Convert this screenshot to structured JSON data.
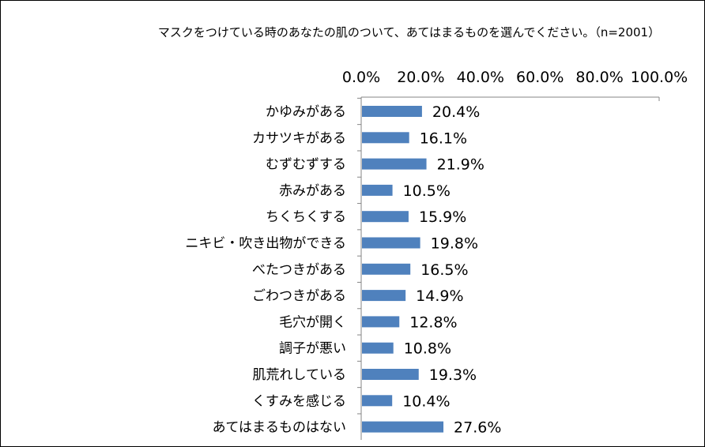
{
  "chart_data": {
    "type": "bar",
    "orientation": "horizontal",
    "title": "マスクをつけている時のあなたの肌のついて、あてはまるものを選んでください。（n=2001）",
    "x_axis_position": "top",
    "xlim": [
      0,
      100
    ],
    "xticks": [
      "0.0%",
      "20.0%",
      "40.0%",
      "60.0%",
      "80.0%",
      "100.0%"
    ],
    "categories": [
      "かゆみがある",
      "カサツキがある",
      "むずむずする",
      "赤みがある",
      "ちくちくする",
      "ニキビ・吹き出物ができる",
      "べたつきがある",
      "ごわつきがある",
      "毛穴が開く",
      "調子が悪い",
      "肌荒れしている",
      "くすみを感じる",
      "あてはまるものはない"
    ],
    "values": [
      20.4,
      16.1,
      21.9,
      10.5,
      15.9,
      19.8,
      16.5,
      14.9,
      12.8,
      10.8,
      19.3,
      10.4,
      27.6
    ],
    "data_labels": [
      "20.4%",
      "16.1%",
      "21.9%",
      "10.5%",
      "15.9%",
      "19.8%",
      "16.5%",
      "14.9%",
      "12.8%",
      "10.8%",
      "19.3%",
      "10.4%",
      "27.6%"
    ],
    "bar_color": "#4F81BD",
    "grid": false,
    "legend": "none"
  }
}
